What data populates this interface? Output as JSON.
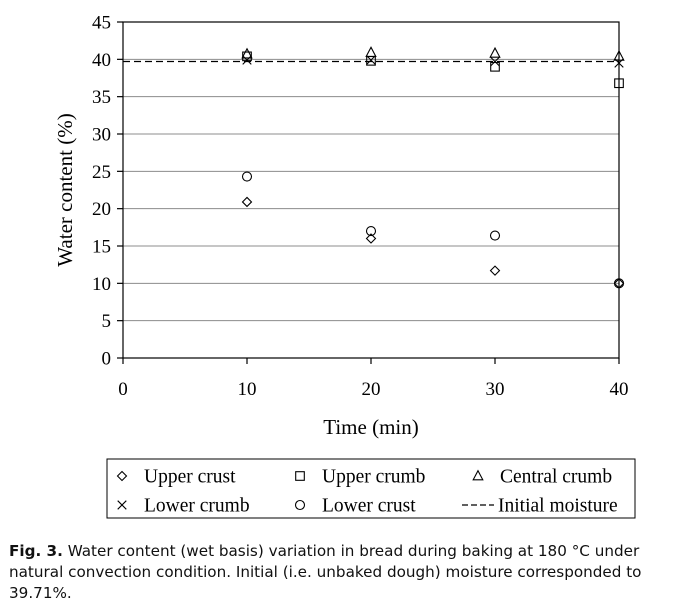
{
  "chart_data": {
    "type": "scatter",
    "xlabel": "Time (min)",
    "ylabel": "Water content (%)",
    "xlim": [
      0,
      40
    ],
    "ylim": [
      0,
      45
    ],
    "x_ticks": [
      "0",
      "10",
      "20",
      "30",
      "40"
    ],
    "y_ticks": [
      "0",
      "5",
      "10",
      "15",
      "20",
      "25",
      "30",
      "35",
      "40",
      "45"
    ],
    "grid": "horizontal",
    "legend_position": "bottom",
    "series": [
      {
        "name": "Upper crust",
        "marker": "diamond",
        "x": [
          10,
          20,
          30,
          40
        ],
        "y": [
          20.9,
          16.0,
          11.7,
          10.0
        ]
      },
      {
        "name": "Upper crumb",
        "marker": "square",
        "x": [
          10,
          20,
          30,
          40
        ],
        "y": [
          40.4,
          39.8,
          39.0,
          36.8
        ]
      },
      {
        "name": "Central crumb",
        "marker": "triangle",
        "x": [
          10,
          20,
          30,
          40
        ],
        "y": [
          40.7,
          40.9,
          40.8,
          40.4
        ]
      },
      {
        "name": "Lower crumb",
        "marker": "x",
        "x": [
          10,
          20,
          30,
          40
        ],
        "y": [
          39.9,
          39.9,
          39.7,
          39.5
        ]
      },
      {
        "name": "Lower crust",
        "marker": "circle",
        "x": [
          10,
          20,
          30,
          40
        ],
        "y": [
          24.3,
          17.0,
          16.4,
          10.0
        ]
      }
    ],
    "reference_line": {
      "name": "Initial moisture",
      "y": 39.71,
      "style": "dashed"
    }
  },
  "caption": {
    "label": "Fig. 3.",
    "text": "Water content (wet basis) variation in bread during baking at 180 °C under natural convection condition. Initial (i.e. unbaked dough) moisture corresponded to 39.71%."
  }
}
